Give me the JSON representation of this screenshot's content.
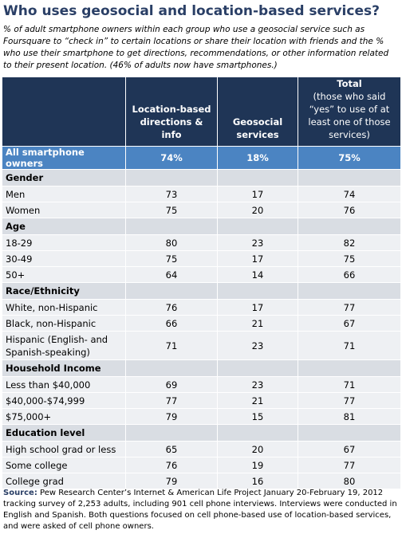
{
  "title": "Who uses geosocial and location-based services?",
  "subtitle": "% of adult smartphone owners within each group who use a geosocial service such as Foursquare to “check in” to certain locations or share their location with friends and the % who use their smartphone to get directions, recommendations, or other information related to their present location. (46% of adults now have smartphones.)",
  "columns": {
    "c1": "Location-based directions & info",
    "c2": "Geosocial services",
    "c3_title": "Total",
    "c3_sub": "(those who said “yes” to use of at least one of those services)"
  },
  "summary": {
    "label": "All smartphone owners",
    "values": [
      "74%",
      "18%",
      "75%"
    ]
  },
  "sections": [
    {
      "name": "Gender",
      "rows": [
        {
          "label": "Men",
          "values": [
            "73",
            "17",
            "74"
          ]
        },
        {
          "label": "Women",
          "values": [
            "75",
            "20",
            "76"
          ]
        }
      ]
    },
    {
      "name": "Age",
      "rows": [
        {
          "label": "18-29",
          "values": [
            "80",
            "23",
            "82"
          ]
        },
        {
          "label": "30-49",
          "values": [
            "75",
            "17",
            "75"
          ]
        },
        {
          "label": "50+",
          "values": [
            "64",
            "14",
            "66"
          ]
        }
      ]
    },
    {
      "name": "Race/Ethnicity",
      "rows": [
        {
          "label": "White, non-Hispanic",
          "values": [
            "76",
            "17",
            "77"
          ]
        },
        {
          "label": "Black, non-Hispanic",
          "values": [
            "66",
            "21",
            "67"
          ]
        },
        {
          "label": "Hispanic (English- and Spanish-speaking)",
          "values": [
            "71",
            "23",
            "71"
          ]
        }
      ]
    },
    {
      "name": "Household Income",
      "rows": [
        {
          "label": "Less than $40,000",
          "values": [
            "69",
            "23",
            "71"
          ]
        },
        {
          "label": "$40,000-$74,999",
          "values": [
            "77",
            "21",
            "77"
          ]
        },
        {
          "label": "$75,000+",
          "values": [
            "79",
            "15",
            "81"
          ]
        }
      ]
    },
    {
      "name": "Education level",
      "rows": [
        {
          "label": "High school grad or less",
          "values": [
            "65",
            "20",
            "67"
          ]
        },
        {
          "label": "Some college",
          "values": [
            "76",
            "19",
            "77"
          ]
        },
        {
          "label": "College grad",
          "values": [
            "79",
            "16",
            "80"
          ]
        }
      ]
    }
  ],
  "source_label": "Source:",
  "source_text": "Pew Research Center’s Internet & American Life Project January 20-February 19, 2012 tracking survey of 2,253 adults, including 901 cell phone interviews. Interviews were conducted in English and Spanish. Both questions focused on cell phone-based use of location-based services, and were asked of cell phone owners.",
  "colors": {
    "header_bg": "#1f3556",
    "summary_bg": "#4b84c2",
    "section_bg": "#d9dde3",
    "row_bg": "#eef0f3",
    "title": "#2a3f66"
  },
  "chart_data": {
    "type": "table",
    "title": "Who uses geosocial and location-based services?",
    "columns": [
      "Location-based directions & info",
      "Geosocial services",
      "Total"
    ],
    "rows": [
      {
        "group": "",
        "label": "All smartphone owners",
        "values": [
          74,
          18,
          75
        ]
      },
      {
        "group": "Gender",
        "label": "Men",
        "values": [
          73,
          17,
          74
        ]
      },
      {
        "group": "Gender",
        "label": "Women",
        "values": [
          75,
          20,
          76
        ]
      },
      {
        "group": "Age",
        "label": "18-29",
        "values": [
          80,
          23,
          82
        ]
      },
      {
        "group": "Age",
        "label": "30-49",
        "values": [
          75,
          17,
          75
        ]
      },
      {
        "group": "Age",
        "label": "50+",
        "values": [
          64,
          14,
          66
        ]
      },
      {
        "group": "Race/Ethnicity",
        "label": "White, non-Hispanic",
        "values": [
          76,
          17,
          77
        ]
      },
      {
        "group": "Race/Ethnicity",
        "label": "Black, non-Hispanic",
        "values": [
          66,
          21,
          67
        ]
      },
      {
        "group": "Race/Ethnicity",
        "label": "Hispanic (English- and Spanish-speaking)",
        "values": [
          71,
          23,
          71
        ]
      },
      {
        "group": "Household Income",
        "label": "Less than $40,000",
        "values": [
          69,
          23,
          71
        ]
      },
      {
        "group": "Household Income",
        "label": "$40,000-$74,999",
        "values": [
          77,
          21,
          77
        ]
      },
      {
        "group": "Household Income",
        "label": "$75,000+",
        "values": [
          79,
          15,
          81
        ]
      },
      {
        "group": "Education level",
        "label": "High school grad or less",
        "values": [
          65,
          20,
          67
        ]
      },
      {
        "group": "Education level",
        "label": "Some college",
        "values": [
          76,
          19,
          77
        ]
      },
      {
        "group": "Education level",
        "label": "College grad",
        "values": [
          79,
          16,
          80
        ]
      }
    ]
  }
}
